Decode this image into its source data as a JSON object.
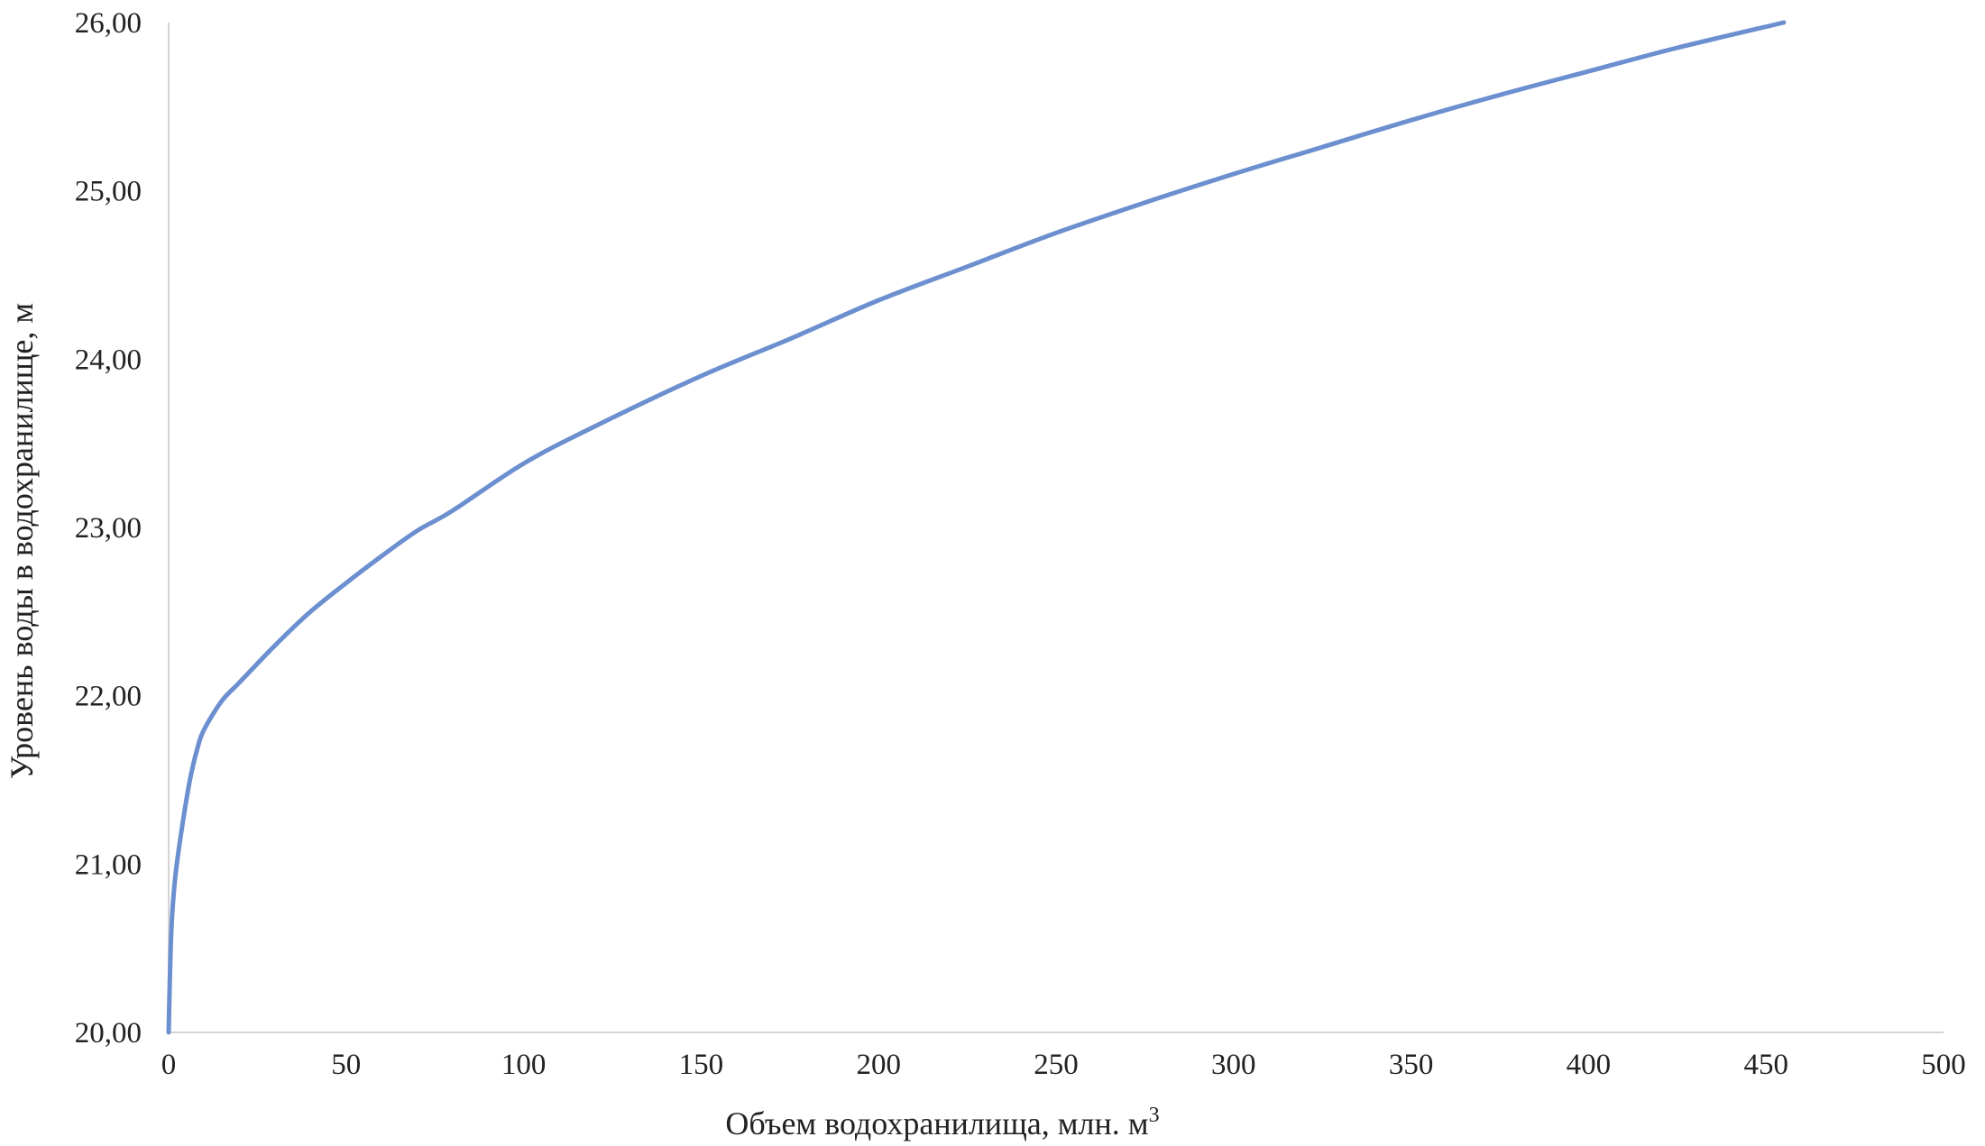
{
  "chart_data": {
    "type": "line",
    "title": "",
    "xlabel": "Объем водохранилища, млн. м",
    "xlabel_superscript": "3",
    "ylabel": "Уровень воды в водохранилище, м",
    "xlim": [
      0,
      500
    ],
    "ylim": [
      20,
      26
    ],
    "x_ticks": [
      "0",
      "50",
      "100",
      "150",
      "200",
      "250",
      "300",
      "350",
      "400",
      "450",
      "500"
    ],
    "y_ticks": [
      "20,00",
      "21,00",
      "22,00",
      "23,00",
      "24,00",
      "25,00",
      "26,00"
    ],
    "grid": false,
    "legend": "none",
    "line_color": "#6b8fcf",
    "axis_color": "#d4d4d4",
    "series": [
      {
        "x": [
          0,
          0.5,
          1,
          2,
          4,
          6,
          8,
          10,
          15,
          20,
          30,
          40,
          50,
          60,
          70,
          80,
          100,
          120,
          150,
          175,
          200,
          225,
          250,
          275,
          300,
          325,
          350,
          375,
          400,
          425,
          455
        ],
        "y": [
          20.0,
          20.45,
          20.7,
          20.95,
          21.25,
          21.5,
          21.68,
          21.8,
          21.97,
          22.08,
          22.3,
          22.5,
          22.67,
          22.83,
          22.98,
          23.1,
          23.38,
          23.6,
          23.9,
          24.12,
          24.35,
          24.55,
          24.75,
          24.93,
          25.1,
          25.26,
          25.42,
          25.57,
          25.71,
          25.85,
          26.0
        ]
      }
    ]
  }
}
